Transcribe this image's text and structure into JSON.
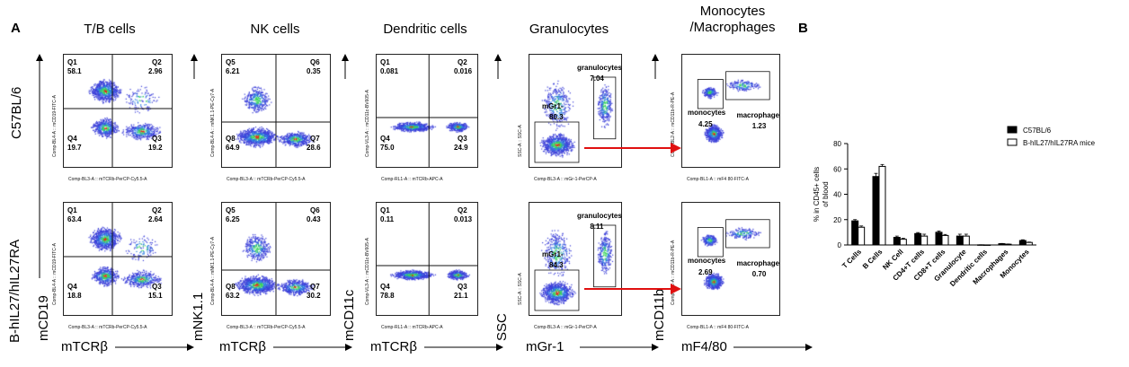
{
  "panels": {
    "a": "A",
    "b": "B"
  },
  "columns": [
    {
      "title": "T/B cells"
    },
    {
      "title": "NK cells"
    },
    {
      "title": "Dendritic cells"
    },
    {
      "title": "Granulocytes"
    },
    {
      "title": "Monocytes\n/Macrophages"
    }
  ],
  "rows": [
    {
      "label": "C57BL/6"
    },
    {
      "label": "B-hIL27/hIL27RA"
    }
  ],
  "big_axes": {
    "x": [
      "mTCRβ",
      "mTCRβ",
      "mTCRβ",
      "mGr-1",
      "mF4/80"
    ],
    "y_bottom": [
      "mCD19",
      "mNK1.1",
      "mCD11c",
      "SSC",
      "mCD11b"
    ]
  },
  "mini_axes": {
    "x": [
      "Comp-BL3-A :: mTCRb-PerCP-Cy5.5-A",
      "Comp-BL3-A :: mTCRb-PerCP-Cy5.5-A",
      "Comp-RL1-A :: mTCRb-APC-A",
      "Comp-BL3-A :: mGr-1-PerCP-A",
      "Comp-BL1-A :: mF4 80-FITC-A"
    ],
    "y": [
      "Comp-BL4-A :: mCD19-FITC-A",
      "Comp-BL4-A :: mNK1.1-PE-Cy7-A",
      "Comp-VL3-A :: mCD11c-BV605-A",
      "SSC-A :: SSC-A",
      "Comp-BL2-A :: mCD11b-R-PE-A"
    ]
  },
  "flow_plots": [
    [
      {
        "quads": [
          {
            "n": "Q1",
            "v": "58.1"
          },
          {
            "n": "Q2",
            "v": "2.96"
          },
          {
            "n": "Q4",
            "v": "19.7"
          },
          {
            "n": "Q3",
            "v": "19.2"
          }
        ]
      },
      {
        "quads": [
          {
            "n": "Q5",
            "v": "6.21"
          },
          {
            "n": "Q6",
            "v": "0.35"
          },
          {
            "n": "Q8",
            "v": "64.9"
          },
          {
            "n": "Q7",
            "v": "28.6"
          }
        ]
      },
      {
        "quads": [
          {
            "n": "Q1",
            "v": "0.081"
          },
          {
            "n": "Q2",
            "v": "0.016"
          },
          {
            "n": "Q4",
            "v": "75.0"
          },
          {
            "n": "Q3",
            "v": "24.9"
          }
        ]
      },
      {
        "gates": [
          {
            "n": "granulocytes",
            "v": "7.04"
          },
          {
            "n": "mGr1-",
            "v": "80.3"
          }
        ]
      },
      {
        "gates": [
          {
            "n": "monocytes",
            "v": "4.25"
          },
          {
            "n": "macrophage",
            "v": "1.23"
          }
        ]
      }
    ],
    [
      {
        "quads": [
          {
            "n": "Q1",
            "v": "63.4"
          },
          {
            "n": "Q2",
            "v": "2.64"
          },
          {
            "n": "Q4",
            "v": "18.8"
          },
          {
            "n": "Q3",
            "v": "15.1"
          }
        ]
      },
      {
        "quads": [
          {
            "n": "Q5",
            "v": "6.25"
          },
          {
            "n": "Q6",
            "v": "0.43"
          },
          {
            "n": "Q8",
            "v": "63.2"
          },
          {
            "n": "Q7",
            "v": "30.2"
          }
        ]
      },
      {
        "quads": [
          {
            "n": "Q1",
            "v": "0.11"
          },
          {
            "n": "Q2",
            "v": "0.013"
          },
          {
            "n": "Q4",
            "v": "78.8"
          },
          {
            "n": "Q3",
            "v": "21.1"
          }
        ]
      },
      {
        "gates": [
          {
            "n": "granulocytes",
            "v": "8.11"
          },
          {
            "n": "mGr1-",
            "v": "84.3"
          }
        ]
      },
      {
        "gates": [
          {
            "n": "monocytes",
            "v": "2.69"
          },
          {
            "n": "macrophage",
            "v": "0.70"
          }
        ]
      }
    ]
  ],
  "chart_data": {
    "type": "bar",
    "categories": [
      "T Cells",
      "B Cells",
      "NK Cell",
      "CD4+T cells",
      "CD8+T cells",
      "Granulocyte",
      "Dendritic cells",
      "Macrophages",
      "Monocytes"
    ],
    "series": [
      {
        "name": "C57BL/6",
        "values": [
          19,
          54,
          6,
          9,
          10,
          7,
          0.1,
          1,
          3.5
        ],
        "errors": [
          1,
          2.5,
          1,
          0.8,
          1,
          1.5,
          0.05,
          0.2,
          0.6
        ]
      },
      {
        "name": "B-hIL27/hIL27RA mice",
        "values": [
          14,
          62,
          4.5,
          7,
          7.5,
          7,
          0.05,
          0.6,
          2
        ],
        "errors": [
          1,
          1.5,
          0.8,
          1.5,
          0.8,
          1.5,
          0.02,
          0.2,
          0.3
        ]
      }
    ],
    "ylabel": "% in CD45+ cells of blood",
    "ylim": [
      0,
      80
    ],
    "yticks": [
      0,
      20,
      40,
      60,
      80
    ],
    "legend_position": "top-right",
    "colors": {
      "series0": "#000000",
      "series1": "#ffffff"
    }
  }
}
